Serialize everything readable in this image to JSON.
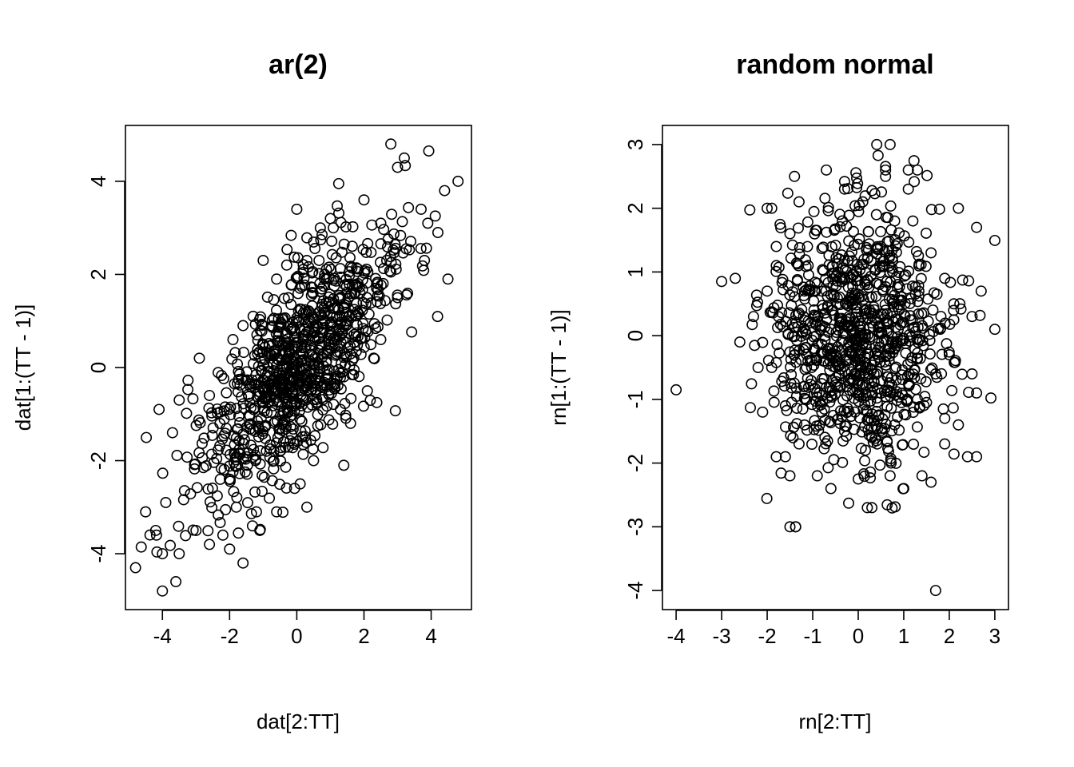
{
  "chart_data": [
    {
      "type": "scatter",
      "title": "ar(2)",
      "xlabel": "dat[2:TT]",
      "ylabel": "dat[1:(TT - 1)]",
      "xlim": [
        -5.1,
        5.2
      ],
      "ylim": [
        -5.2,
        5.2
      ],
      "xticks": [
        -4,
        -2,
        0,
        2,
        4
      ],
      "yticks": [
        -4,
        -2,
        0,
        2,
        4
      ],
      "xtick_labels": [
        "-4",
        "-2",
        "0",
        "2",
        "4"
      ],
      "ytick_labels": [
        "-4",
        "-2",
        "0",
        "2",
        "4"
      ],
      "grid": false,
      "legend": "none",
      "point_count": 1000,
      "correlation": 0.72,
      "marker": "open-circle",
      "anchor_points": [
        [
          -4.8,
          -4.3
        ],
        [
          -4.0,
          -4.8
        ],
        [
          -3.6,
          -4.6
        ],
        [
          -4.5,
          -3.1
        ],
        [
          -4.2,
          -3.5
        ],
        [
          -4.0,
          -4.0
        ],
        [
          -3.9,
          -2.9
        ],
        [
          -3.5,
          -4.0
        ],
        [
          -3.0,
          -3.5
        ],
        [
          -2.6,
          -3.8
        ],
        [
          -2.2,
          -3.6
        ],
        [
          -2.0,
          -3.9
        ],
        [
          -1.6,
          -4.2
        ],
        [
          -4.1,
          -0.9
        ],
        [
          -3.7,
          -1.4
        ],
        [
          -3.5,
          -0.7
        ],
        [
          -2.9,
          0.2
        ],
        [
          -2.6,
          -0.6
        ],
        [
          -1.9,
          0.6
        ],
        [
          -1.6,
          0.9
        ],
        [
          -1.3,
          1.1
        ],
        [
          -1.0,
          2.3
        ],
        [
          -0.6,
          1.9
        ],
        [
          0.0,
          3.4
        ],
        [
          0.7,
          3.0
        ],
        [
          1.0,
          3.2
        ],
        [
          2.0,
          3.6
        ],
        [
          2.5,
          3.1
        ],
        [
          2.8,
          4.8
        ],
        [
          3.0,
          4.3
        ],
        [
          3.2,
          4.5
        ],
        [
          3.7,
          3.4
        ],
        [
          3.9,
          3.1
        ],
        [
          4.2,
          2.9
        ],
        [
          4.4,
          3.8
        ],
        [
          4.8,
          4.0
        ],
        [
          4.5,
          1.9
        ],
        [
          3.8,
          2.3
        ],
        [
          3.0,
          1.5
        ],
        [
          2.5,
          0.6
        ],
        [
          2.1,
          -0.5
        ],
        [
          1.4,
          -0.2
        ],
        [
          1.3,
          -0.9
        ],
        [
          0.5,
          -2.0
        ],
        [
          0.3,
          -3.0
        ],
        [
          -0.6,
          -3.1
        ],
        [
          -1.1,
          -3.5
        ],
        [
          -1.2,
          -3.1
        ],
        [
          -1.8,
          -3.0
        ],
        [
          0.1,
          -2.5
        ],
        [
          1.4,
          -2.1
        ],
        [
          1.6,
          -1.2
        ],
        [
          0.3,
          2.3
        ],
        [
          -0.3,
          2.2
        ]
      ]
    },
    {
      "type": "scatter",
      "title": "random normal",
      "xlabel": "rn[2:TT]",
      "ylabel": "rn[1:(TT - 1)]",
      "xlim": [
        -4.3,
        3.3
      ],
      "ylim": [
        -4.3,
        3.3
      ],
      "xticks": [
        -4,
        -3,
        -2,
        -1,
        0,
        1,
        2,
        3
      ],
      "yticks": [
        -4,
        -3,
        -2,
        -1,
        0,
        1,
        2,
        3
      ],
      "xtick_labels": [
        "-4",
        "-3",
        "-2",
        "-1",
        "0",
        "1",
        "2",
        "3"
      ],
      "ytick_labels": [
        "-4",
        "-3",
        "-2",
        "-1",
        "0",
        "1",
        "2",
        "3"
      ],
      "grid": false,
      "legend": "none",
      "point_count": 1000,
      "correlation": 0.0,
      "marker": "open-circle",
      "anchor_points": [
        [
          -4.0,
          -0.85
        ],
        [
          -3.0,
          0.85
        ],
        [
          -2.7,
          0.9
        ],
        [
          -2.6,
          -0.1
        ],
        [
          -2.3,
          0.3
        ],
        [
          -2.2,
          -0.5
        ],
        [
          -2.0,
          2.0
        ],
        [
          -1.9,
          2.0
        ],
        [
          -1.8,
          1.4
        ],
        [
          -1.3,
          2.1
        ],
        [
          -1.4,
          2.5
        ],
        [
          -0.7,
          2.6
        ],
        [
          0.7,
          3.0
        ],
        [
          0.6,
          2.6
        ],
        [
          0.6,
          2.5
        ],
        [
          1.1,
          2.6
        ],
        [
          1.3,
          2.6
        ],
        [
          1.1,
          2.3
        ],
        [
          2.2,
          2.0
        ],
        [
          2.6,
          1.7
        ],
        [
          2.7,
          0.7
        ],
        [
          2.5,
          0.3
        ],
        [
          3.0,
          0.1
        ],
        [
          2.5,
          -0.6
        ],
        [
          2.6,
          -0.9
        ],
        [
          2.4,
          -1.9
        ],
        [
          2.6,
          -1.9
        ],
        [
          2.2,
          -1.4
        ],
        [
          1.9,
          -1.7
        ],
        [
          1.6,
          -2.3
        ],
        [
          1.7,
          -4.0
        ],
        [
          1.4,
          -2.2
        ],
        [
          1.0,
          -2.4
        ],
        [
          0.7,
          -2.2
        ],
        [
          0.2,
          -2.7
        ],
        [
          0.3,
          -2.7
        ],
        [
          0.0,
          -2.25
        ],
        [
          -0.6,
          -2.4
        ],
        [
          -0.9,
          -2.2
        ],
        [
          -1.5,
          -3.0
        ],
        [
          -1.6,
          -1.9
        ],
        [
          -1.5,
          -2.2
        ],
        [
          -1.8,
          -1.9
        ],
        [
          -1.3,
          -1.7
        ],
        [
          -1.6,
          -1.1
        ],
        [
          -2.1,
          -1.2
        ],
        [
          -1.9,
          -0.5
        ],
        [
          -2.0,
          0.7
        ],
        [
          -1.8,
          1.1
        ],
        [
          -1.5,
          1.6
        ],
        [
          -1.1,
          1.1
        ],
        [
          -0.3,
          2.3
        ],
        [
          0.1,
          2.1
        ],
        [
          0.4,
          1.9
        ],
        [
          0.8,
          1.8
        ],
        [
          1.2,
          1.8
        ],
        [
          1.6,
          1.3
        ],
        [
          1.9,
          0.9
        ],
        [
          2.1,
          0.5
        ],
        [
          1.8,
          0.1
        ],
        [
          2.0,
          -0.3
        ],
        [
          1.7,
          -0.6
        ],
        [
          1.3,
          -1.0
        ],
        [
          0.8,
          -1.4
        ],
        [
          0.3,
          -1.6
        ],
        [
          -0.3,
          -1.5
        ],
        [
          -0.8,
          -1.2
        ],
        [
          -1.2,
          -0.8
        ],
        [
          -1.4,
          -0.3
        ],
        [
          -1.2,
          0.3
        ],
        [
          -0.8,
          0.7
        ],
        [
          -0.3,
          0.9
        ],
        [
          0.2,
          0.8
        ],
        [
          0.6,
          0.4
        ],
        [
          0.7,
          -0.2
        ],
        [
          0.4,
          -0.6
        ],
        [
          -0.1,
          -0.7
        ],
        [
          -0.5,
          -0.4
        ],
        [
          -0.6,
          0.1
        ],
        [
          -0.2,
          0.3
        ],
        [
          0.1,
          0.0
        ],
        [
          0.3,
          0.2
        ]
      ]
    }
  ]
}
